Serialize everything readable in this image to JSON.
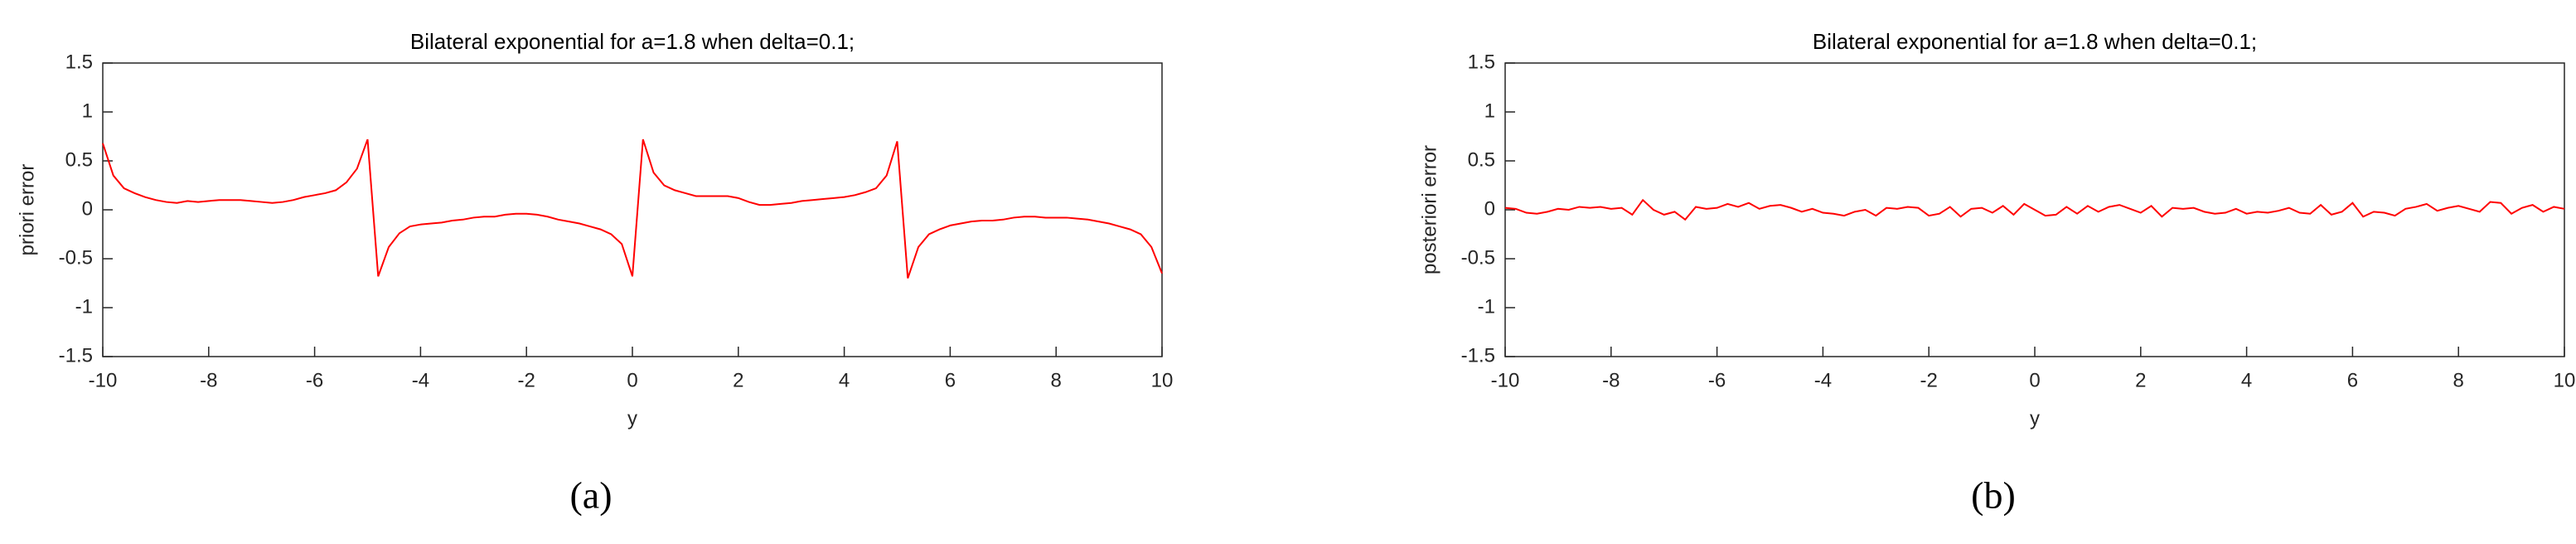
{
  "chart_data": [
    {
      "type": "line",
      "title": "Bilateral exponential for a=1.8 when delta=0.1;",
      "xlabel": "y",
      "ylabel": "priori error",
      "caption": "(a)",
      "color": "#ff0000",
      "x": [
        -10,
        -9.8,
        -9.6,
        -9.4,
        -9.2,
        -9,
        -8.8,
        -8.6,
        -8.4,
        -8.2,
        -8,
        -7.8,
        -7.6,
        -7.4,
        -7.2,
        -7,
        -6.8,
        -6.6,
        -6.4,
        -6.2,
        -6,
        -5.8,
        -5.6,
        -5.4,
        -5.2,
        -5,
        -4.8,
        -4.6,
        -4.4,
        -4.2,
        -4,
        -3.8,
        -3.6,
        -3.4,
        -3.2,
        -3,
        -2.8,
        -2.6,
        -2.4,
        -2.2,
        -2,
        -1.8,
        -1.6,
        -1.4,
        -1.2,
        -1,
        -0.8,
        -0.6,
        -0.4,
        -0.2,
        0,
        0.2,
        0.4,
        0.6,
        0.8,
        1,
        1.2,
        1.4,
        1.6,
        1.8,
        2,
        2.2,
        2.4,
        2.6,
        2.8,
        3,
        3.2,
        3.4,
        3.6,
        3.8,
        4,
        4.2,
        4.4,
        4.6,
        4.8,
        5,
        5.2,
        5.4,
        5.6,
        5.8,
        6,
        6.2,
        6.4,
        6.6,
        6.8,
        7,
        7.2,
        7.4,
        7.6,
        7.8,
        8,
        8.2,
        8.4,
        8.6,
        8.8,
        9,
        9.2,
        9.4,
        9.6,
        9.8,
        10
      ],
      "values": [
        0.68,
        0.35,
        0.22,
        0.17,
        0.13,
        0.1,
        0.08,
        0.07,
        0.09,
        0.08,
        0.09,
        0.1,
        0.1,
        0.1,
        0.09,
        0.08,
        0.07,
        0.08,
        0.1,
        0.13,
        0.15,
        0.17,
        0.2,
        0.28,
        0.42,
        0.72,
        -0.68,
        -0.38,
        -0.24,
        -0.17,
        -0.15,
        -0.14,
        -0.13,
        -0.11,
        -0.1,
        -0.08,
        -0.07,
        -0.07,
        -0.05,
        -0.04,
        -0.04,
        -0.05,
        -0.07,
        -0.1,
        -0.12,
        -0.14,
        -0.17,
        -0.2,
        -0.25,
        -0.35,
        -0.68,
        0.72,
        0.38,
        0.25,
        0.2,
        0.17,
        0.14,
        0.14,
        0.14,
        0.14,
        0.12,
        0.08,
        0.05,
        0.05,
        0.06,
        0.07,
        0.09,
        0.1,
        0.11,
        0.12,
        0.13,
        0.15,
        0.18,
        0.22,
        0.35,
        0.7,
        -0.7,
        -0.38,
        -0.25,
        -0.2,
        -0.16,
        -0.14,
        -0.12,
        -0.11,
        -0.11,
        -0.1,
        -0.08,
        -0.07,
        -0.07,
        -0.08,
        -0.08,
        -0.08,
        -0.09,
        -0.1,
        -0.12,
        -0.14,
        -0.17,
        -0.2,
        -0.25,
        -0.38,
        -0.65
      ],
      "xlim": [
        -10,
        10
      ],
      "xticks": [
        -10,
        -8,
        -6,
        -4,
        -2,
        0,
        2,
        4,
        6,
        8,
        10
      ],
      "ylim": [
        -1.5,
        1.5
      ],
      "yticks": [
        -1.5,
        -1,
        -0.5,
        0,
        0.5,
        1,
        1.5
      ]
    },
    {
      "type": "line",
      "title": "Bilateral exponential for a=1.8 when delta=0.1;",
      "xlabel": "y",
      "ylabel": "posteriori error",
      "caption": "(b)",
      "color": "#ff0000",
      "x": [
        -10,
        -9.8,
        -9.6,
        -9.4,
        -9.2,
        -9,
        -8.8,
        -8.6,
        -8.4,
        -8.2,
        -8,
        -7.8,
        -7.6,
        -7.4,
        -7.2,
        -7,
        -6.8,
        -6.6,
        -6.4,
        -6.2,
        -6,
        -5.8,
        -5.6,
        -5.4,
        -5.2,
        -5,
        -4.8,
        -4.6,
        -4.4,
        -4.2,
        -4,
        -3.8,
        -3.6,
        -3.4,
        -3.2,
        -3,
        -2.8,
        -2.6,
        -2.4,
        -2.2,
        -2,
        -1.8,
        -1.6,
        -1.4,
        -1.2,
        -1,
        -0.8,
        -0.6,
        -0.4,
        -0.2,
        0,
        0.2,
        0.4,
        0.6,
        0.8,
        1,
        1.2,
        1.4,
        1.6,
        1.8,
        2,
        2.2,
        2.4,
        2.6,
        2.8,
        3,
        3.2,
        3.4,
        3.6,
        3.8,
        4,
        4.2,
        4.4,
        4.6,
        4.8,
        5,
        5.2,
        5.4,
        5.6,
        5.8,
        6,
        6.2,
        6.4,
        6.6,
        6.8,
        7,
        7.2,
        7.4,
        7.6,
        7.8,
        8,
        8.2,
        8.4,
        8.6,
        8.8,
        9,
        9.2,
        9.4,
        9.6,
        9.8,
        10
      ],
      "values": [
        0.02,
        0.01,
        -0.03,
        -0.04,
        -0.02,
        0.01,
        0.0,
        0.03,
        0.02,
        0.03,
        0.01,
        0.02,
        -0.05,
        0.1,
        0.0,
        -0.05,
        -0.02,
        -0.1,
        0.03,
        0.01,
        0.02,
        0.06,
        0.03,
        0.07,
        0.01,
        0.04,
        0.05,
        0.02,
        -0.02,
        0.01,
        -0.03,
        -0.04,
        -0.06,
        -0.02,
        0.0,
        -0.06,
        0.02,
        0.01,
        0.03,
        0.02,
        -0.06,
        -0.04,
        0.03,
        -0.07,
        0.01,
        0.02,
        -0.03,
        0.04,
        -0.05,
        0.06,
        0.0,
        -0.06,
        -0.05,
        0.03,
        -0.04,
        0.04,
        -0.02,
        0.03,
        0.05,
        0.01,
        -0.03,
        0.04,
        -0.07,
        0.02,
        0.01,
        0.02,
        -0.02,
        -0.04,
        -0.03,
        0.01,
        -0.04,
        -0.02,
        -0.03,
        -0.01,
        0.02,
        -0.03,
        -0.04,
        0.05,
        -0.05,
        -0.02,
        0.07,
        -0.07,
        -0.02,
        -0.03,
        -0.06,
        0.01,
        0.03,
        0.06,
        -0.01,
        0.02,
        0.04,
        0.01,
        -0.02,
        0.08,
        0.07,
        -0.04,
        0.02,
        0.05,
        -0.02,
        0.03,
        0.01
      ],
      "xlim": [
        -10,
        10
      ],
      "xticks": [
        -10,
        -8,
        -6,
        -4,
        -2,
        0,
        2,
        4,
        6,
        8,
        10
      ],
      "ylim": [
        -1.5,
        1.5
      ],
      "yticks": [
        -1.5,
        -1,
        -0.5,
        0,
        0.5,
        1,
        1.5
      ]
    }
  ]
}
